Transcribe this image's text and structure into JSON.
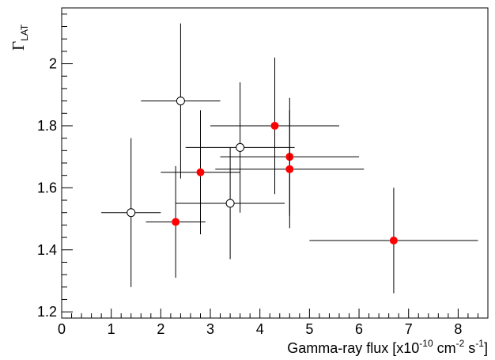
{
  "chart_data": {
    "type": "scatter",
    "title": "",
    "xlabel": {
      "prefix": "Gamma-ray flux [x10",
      "exp1": "-10",
      "mid": " cm",
      "exp2": "-2",
      "mid2": " s",
      "exp3": "-1",
      "suffix": "]"
    },
    "ylabel": {
      "symbol": "Γ",
      "subscript": "LAT"
    },
    "xlim": [
      0,
      8.6
    ],
    "ylim": [
      1.18,
      2.18
    ],
    "x_ticks": [
      0,
      1,
      2,
      3,
      4,
      5,
      6,
      7,
      8
    ],
    "y_ticks": [
      1.2,
      1.4,
      1.6,
      1.8,
      2.0
    ],
    "x_tick_labels": [
      "0",
      "1",
      "2",
      "3",
      "4",
      "5",
      "6",
      "7",
      "8"
    ],
    "y_tick_labels": [
      "1.2",
      "1.4",
      "1.6",
      "1.8",
      "2"
    ],
    "grid": false,
    "series": [
      {
        "marker": "open-circle",
        "color": "#000000",
        "points": [
          {
            "x": 1.4,
            "y": 1.52,
            "xerr": [
              0.6,
              0.6
            ],
            "yerr": [
              0.24,
              0.24
            ]
          },
          {
            "x": 2.4,
            "y": 1.88,
            "xerr": [
              0.8,
              0.8
            ],
            "yerr": [
              0.25,
              0.25
            ]
          },
          {
            "x": 3.4,
            "y": 1.55,
            "xerr": [
              1.1,
              1.1
            ],
            "yerr": [
              0.18,
              0.18
            ]
          },
          {
            "x": 3.6,
            "y": 1.73,
            "xerr": [
              1.1,
              1.1
            ],
            "yerr": [
              0.21,
              0.21
            ]
          }
        ]
      },
      {
        "marker": "filled-circle",
        "color": "#ff0000",
        "points": [
          {
            "x": 2.3,
            "y": 1.49,
            "xerr": [
              0.6,
              0.6
            ],
            "yerr": [
              0.18,
              0.18
            ]
          },
          {
            "x": 2.8,
            "y": 1.65,
            "xerr": [
              0.8,
              0.8
            ],
            "yerr": [
              0.2,
              0.2
            ]
          },
          {
            "x": 4.3,
            "y": 1.8,
            "xerr": [
              1.3,
              1.3
            ],
            "yerr": [
              0.22,
              0.22
            ]
          },
          {
            "x": 4.6,
            "y": 1.7,
            "xerr": [
              1.4,
              1.4
            ],
            "yerr": [
              0.19,
              0.19
            ]
          },
          {
            "x": 4.6,
            "y": 1.66,
            "xerr": [
              1.5,
              1.5
            ],
            "yerr": [
              0.19,
              0.19
            ]
          },
          {
            "x": 6.7,
            "y": 1.43,
            "xerr": [
              1.7,
              1.7
            ],
            "yerr": [
              0.17,
              0.17
            ]
          }
        ]
      }
    ]
  }
}
